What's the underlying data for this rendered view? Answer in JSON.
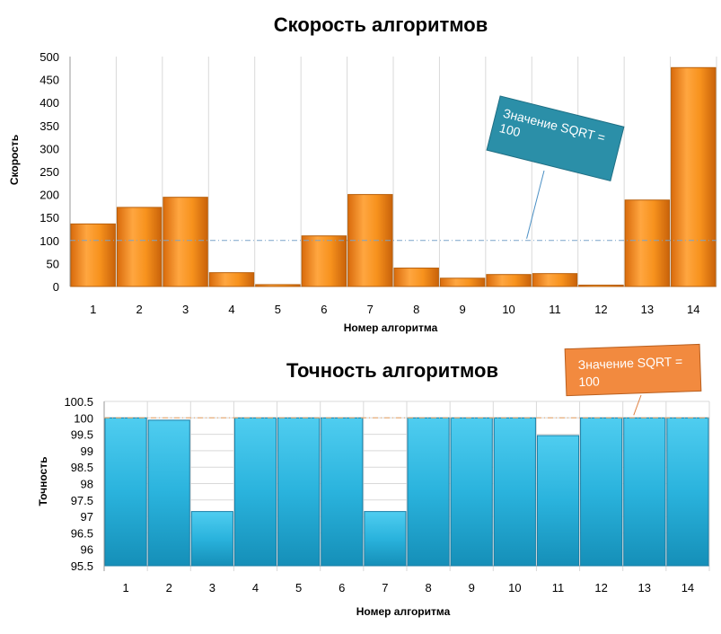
{
  "colors": {
    "speed_bar": "#f7931e",
    "accuracy_bar": "#2eb4dd",
    "speed_callout": "#2b8fa8",
    "accuracy_callout": "#f28a3f"
  },
  "chart_data": [
    {
      "type": "bar",
      "title": "Скорость алгоритмов",
      "xlabel": "Номер алгоритма",
      "ylabel": "Скорость",
      "categories": [
        "1",
        "2",
        "3",
        "4",
        "5",
        "6",
        "7",
        "8",
        "9",
        "10",
        "11",
        "12",
        "13",
        "14"
      ],
      "values": [
        136,
        172,
        194,
        30,
        4,
        110,
        200,
        40,
        18,
        26,
        28,
        1,
        188,
        476
      ],
      "ylim": [
        0,
        500
      ],
      "yticks": [
        0,
        50,
        100,
        150,
        200,
        250,
        300,
        350,
        400,
        450,
        500
      ],
      "ytick_labels": [
        "0",
        "50",
        "100",
        "150",
        "200",
        "250",
        "300",
        "350",
        "400",
        "450",
        "500"
      ],
      "reference_line": 100,
      "callout": "Значение SQRT = 100",
      "callout_target_category": "10"
    },
    {
      "type": "bar",
      "title": "Точность алгоритмов",
      "xlabel": "Номер алгоритма",
      "ylabel": "Точность",
      "categories": [
        "1",
        "2",
        "3",
        "4",
        "5",
        "6",
        "7",
        "8",
        "9",
        "10",
        "11",
        "12",
        "13",
        "14"
      ],
      "values": [
        100,
        99.93,
        97.15,
        100,
        100,
        100,
        97.15,
        100,
        100,
        100,
        99.46,
        100,
        100,
        100
      ],
      "ylim": [
        95.5,
        100.5
      ],
      "yticks": [
        95.5,
        96,
        96.5,
        97,
        97.5,
        98,
        98.5,
        99,
        99.5,
        100,
        100.5
      ],
      "ytick_labels": [
        "95.5",
        "96",
        "96.5",
        "97",
        "97.5",
        "98",
        "98.5",
        "99",
        "99.5",
        "100",
        "100.5"
      ],
      "reference_line": 100,
      "callout": "Значение SQRT = 100",
      "callout_target_category": "13"
    }
  ]
}
